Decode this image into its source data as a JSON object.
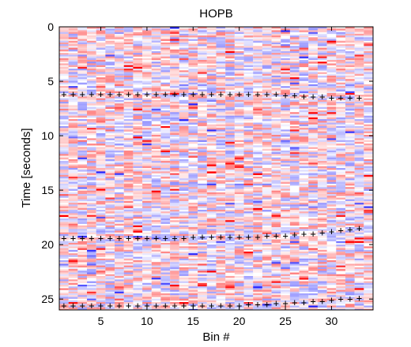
{
  "chart_data": {
    "type": "heatmap",
    "title": "HOPB",
    "xlabel": "Bin #",
    "ylabel": "Time [seconds]",
    "xlim": [
      0.5,
      34.5
    ],
    "ylim": [
      0,
      26
    ],
    "y_direction": "reversed",
    "x_ticks": [
      5,
      10,
      15,
      20,
      25,
      30
    ],
    "y_ticks": [
      0,
      5,
      10,
      15,
      20,
      25
    ],
    "colormap": [
      "#0000ff",
      "#ffffff",
      "#ff0000"
    ],
    "grid": false,
    "boundary_markers": [
      {
        "marker": "+",
        "points": [
          [
            1,
            6.2
          ],
          [
            2,
            6.2
          ],
          [
            3,
            6.2
          ],
          [
            4,
            6.2
          ],
          [
            5,
            6.2
          ],
          [
            6,
            6.2
          ],
          [
            7,
            6.2
          ],
          [
            8,
            6.2
          ],
          [
            9,
            6.2
          ],
          [
            10,
            6.2
          ],
          [
            11,
            6.2
          ],
          [
            12,
            6.2
          ],
          [
            13,
            6.2
          ],
          [
            14,
            6.2
          ],
          [
            15,
            6.2
          ],
          [
            16,
            6.2
          ],
          [
            17,
            6.2
          ],
          [
            18,
            6.2
          ],
          [
            19,
            6.2
          ],
          [
            20,
            6.2
          ],
          [
            21,
            6.2
          ],
          [
            22,
            6.2
          ],
          [
            23,
            6.2
          ],
          [
            24,
            6.2
          ],
          [
            25,
            6.3
          ],
          [
            26,
            6.3
          ],
          [
            27,
            6.4
          ],
          [
            28,
            6.4
          ],
          [
            29,
            6.4
          ],
          [
            30,
            6.5
          ],
          [
            31,
            6.5
          ],
          [
            32,
            6.5
          ],
          [
            33,
            6.5
          ]
        ]
      },
      {
        "marker": "+",
        "points": [
          [
            1,
            19.4
          ],
          [
            2,
            19.4
          ],
          [
            3,
            19.4
          ],
          [
            4,
            19.4
          ],
          [
            5,
            19.4
          ],
          [
            6,
            19.4
          ],
          [
            7,
            19.4
          ],
          [
            8,
            19.4
          ],
          [
            9,
            19.4
          ],
          [
            10,
            19.4
          ],
          [
            11,
            19.4
          ],
          [
            12,
            19.4
          ],
          [
            13,
            19.4
          ],
          [
            14,
            19.4
          ],
          [
            15,
            19.3
          ],
          [
            16,
            19.3
          ],
          [
            17,
            19.3
          ],
          [
            18,
            19.3
          ],
          [
            19,
            19.3
          ],
          [
            20,
            19.3
          ],
          [
            21,
            19.3
          ],
          [
            22,
            19.3
          ],
          [
            23,
            19.2
          ],
          [
            24,
            19.2
          ],
          [
            25,
            19.2
          ],
          [
            26,
            19.1
          ],
          [
            27,
            19.0
          ],
          [
            28,
            19.0
          ],
          [
            29,
            18.9
          ],
          [
            30,
            18.8
          ],
          [
            31,
            18.7
          ],
          [
            32,
            18.6
          ],
          [
            33,
            18.5
          ]
        ]
      },
      {
        "marker": "+",
        "points": [
          [
            1,
            25.6
          ],
          [
            2,
            25.6
          ],
          [
            3,
            25.6
          ],
          [
            4,
            25.6
          ],
          [
            5,
            25.6
          ],
          [
            6,
            25.6
          ],
          [
            7,
            25.6
          ],
          [
            8,
            25.6
          ],
          [
            9,
            25.6
          ],
          [
            10,
            25.6
          ],
          [
            11,
            25.6
          ],
          [
            12,
            25.6
          ],
          [
            13,
            25.6
          ],
          [
            14,
            25.6
          ],
          [
            15,
            25.6
          ],
          [
            16,
            25.6
          ],
          [
            17,
            25.6
          ],
          [
            18,
            25.6
          ],
          [
            19,
            25.6
          ],
          [
            20,
            25.6
          ],
          [
            21,
            25.5
          ],
          [
            22,
            25.5
          ],
          [
            23,
            25.5
          ],
          [
            24,
            25.4
          ],
          [
            25,
            25.4
          ],
          [
            26,
            25.3
          ],
          [
            27,
            25.3
          ],
          [
            28,
            25.2
          ],
          [
            29,
            25.2
          ],
          [
            30,
            25.1
          ],
          [
            31,
            25.0
          ],
          [
            32,
            25.0
          ],
          [
            33,
            24.9
          ]
        ]
      }
    ]
  }
}
